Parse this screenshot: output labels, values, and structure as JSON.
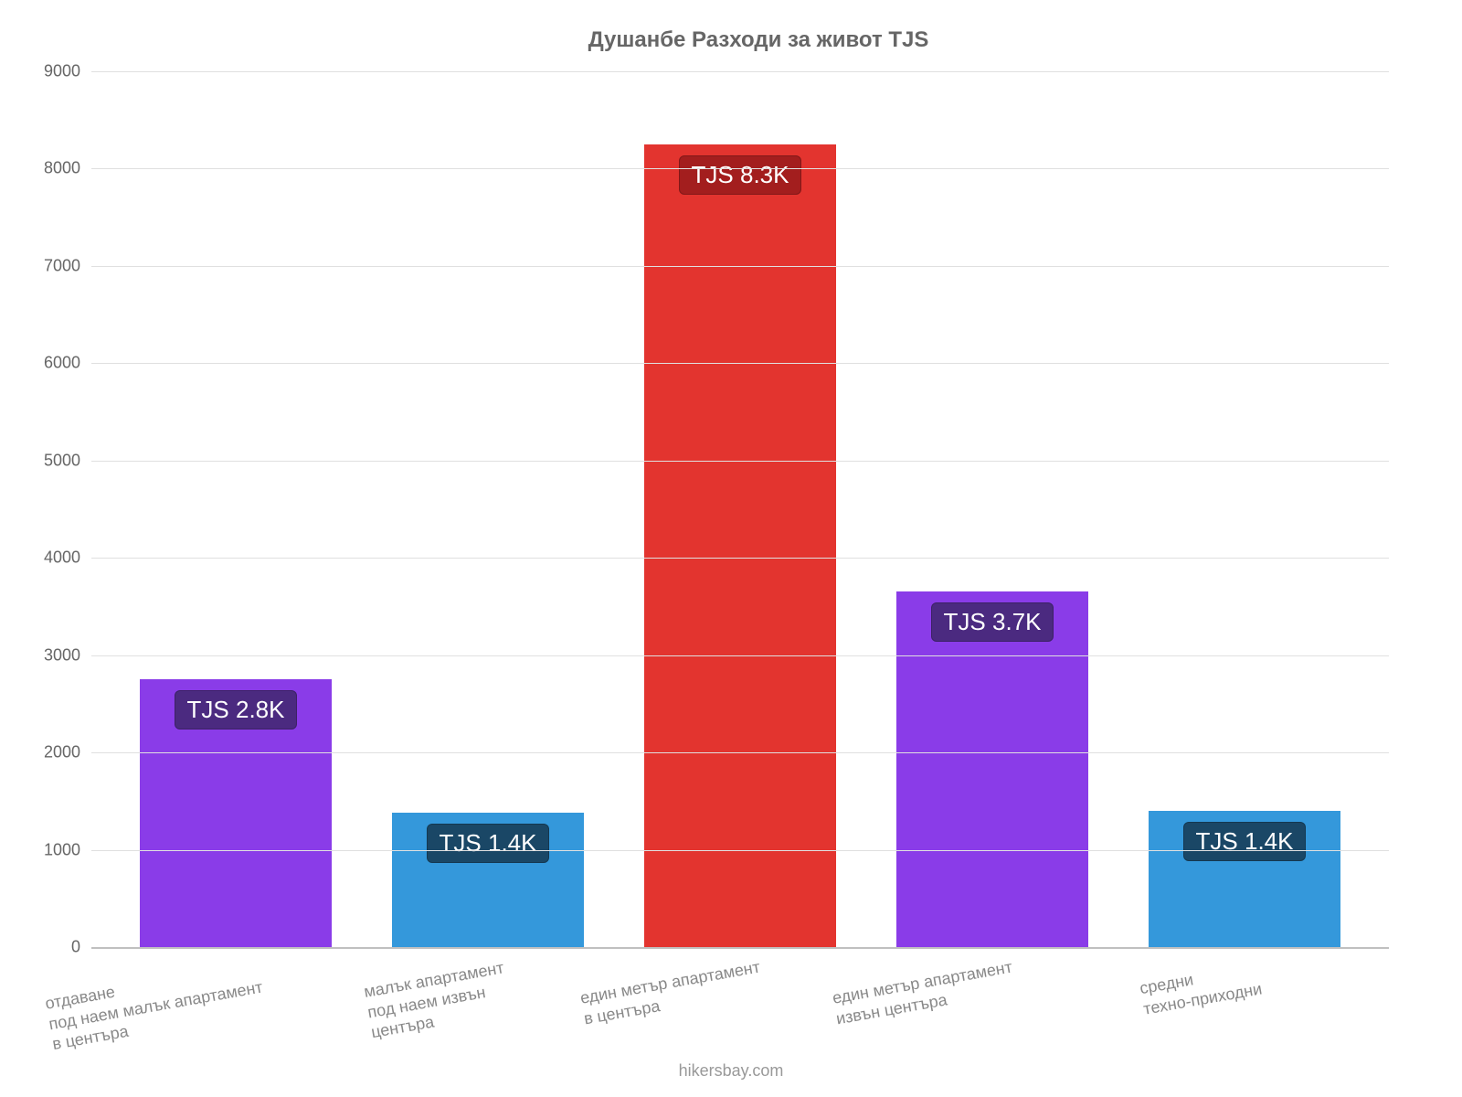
{
  "chart": {
    "type": "bar",
    "title": "Душанбе Разходи за живот TJS",
    "title_fontsize": 24,
    "title_color": "#666666",
    "background_color": "#ffffff",
    "grid_color": "#e0e0e0",
    "axis_color": "#c0c0c0",
    "tick_label_color": "#666666",
    "xlabel_color": "#888888",
    "bar_width": 0.76,
    "ylim": [
      0,
      9000
    ],
    "ytick_step": 1000,
    "yticks": [
      0,
      1000,
      2000,
      3000,
      4000,
      5000,
      6000,
      7000,
      8000,
      9000
    ],
    "categories": [
      "отдаване\nпод наем малък апартамент\nв центъра",
      "малък апартамент\nпод наем извън\nцентъра",
      "един метър апартамент\nв центъра",
      "един метър апартамент\nизвън центъра",
      "средни\nтехно-приходни"
    ],
    "values": [
      2750,
      1380,
      8250,
      3650,
      1400
    ],
    "value_labels": [
      "TJS 2.8K",
      "TJS 1.4K",
      "TJS 8.3K",
      "TJS 3.7K",
      "TJS 1.4K"
    ],
    "bar_colors": [
      "#8a3ce8",
      "#3498db",
      "#e3342f",
      "#8a3ce8",
      "#3498db"
    ],
    "label_badge_colors": [
      "#4b2a80",
      "#1a4766",
      "#a31e1e",
      "#4b2a80",
      "#1a4766"
    ],
    "label_text_color": "#ffffff",
    "label_fontsize": 26,
    "xlabel_fontsize": 18,
    "ytick_fontsize": 18,
    "xlabel_rotation_deg": -10,
    "footer": "hikersbay.com",
    "footer_color": "#999999",
    "footer_fontsize": 18
  }
}
